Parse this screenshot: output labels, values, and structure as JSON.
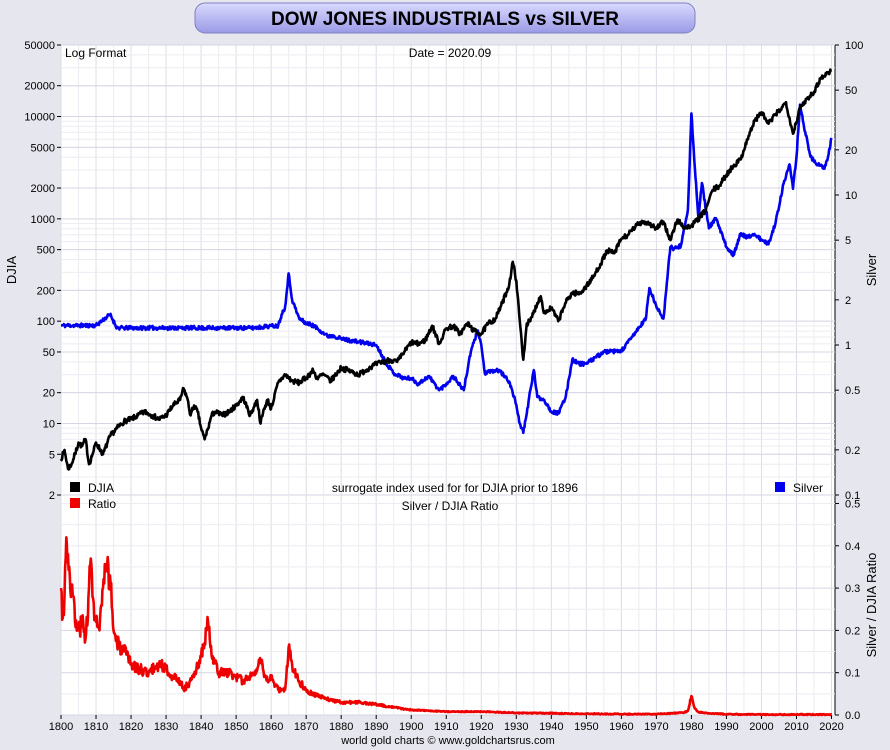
{
  "header": {
    "title": "DOW JONES INDUSTRIALS vs SILVER"
  },
  "footer": {
    "credit": "world gold charts © www.goldchartsrus.com"
  },
  "chart_data": [
    {
      "type": "line",
      "scale": "log",
      "format_note": "Log Format",
      "date_note": "Date = 2020.09",
      "surrogate_note": "surrogate index used for for DJIA prior to 1896",
      "ylabel_left": "DJIA",
      "ylabel_right": "Silver",
      "yticks_left": [
        2,
        5,
        10,
        20,
        50,
        100,
        200,
        500,
        1000,
        2000,
        5000,
        10000,
        20000,
        50000
      ],
      "yticks_right": [
        0.1,
        0.2,
        0.5,
        1,
        2,
        5,
        10,
        20,
        50,
        100
      ],
      "ylim_left": [
        2,
        50000
      ],
      "ylim_right": [
        0.1,
        100
      ],
      "xlim": [
        1800,
        2021
      ],
      "grid": true,
      "colors": {
        "djia": "#000000",
        "silver": "#0000ee"
      },
      "series": [
        {
          "name": "DJIA",
          "axis": "left",
          "x": [
            1800,
            1801,
            1802,
            1803,
            1804,
            1805,
            1806,
            1807,
            1808,
            1809,
            1810,
            1812,
            1814,
            1816,
            1818,
            1820,
            1822,
            1824,
            1826,
            1828,
            1830,
            1832,
            1834,
            1835,
            1836,
            1837,
            1838,
            1839,
            1840,
            1841,
            1842,
            1843,
            1844,
            1846,
            1848,
            1850,
            1852,
            1854,
            1856,
            1857,
            1858,
            1859,
            1860,
            1862,
            1864,
            1866,
            1868,
            1870,
            1872,
            1873,
            1875,
            1877,
            1880,
            1882,
            1885,
            1888,
            1890,
            1892,
            1894,
            1896,
            1898,
            1900,
            1902,
            1904,
            1906,
            1908,
            1910,
            1912,
            1914,
            1916,
            1918,
            1920,
            1922,
            1924,
            1926,
            1928,
            1929,
            1930,
            1931,
            1932,
            1933,
            1934,
            1936,
            1937,
            1938,
            1940,
            1942,
            1944,
            1946,
            1948,
            1950,
            1952,
            1954,
            1956,
            1958,
            1960,
            1962,
            1964,
            1966,
            1968,
            1970,
            1972,
            1974,
            1976,
            1978,
            1980,
            1982,
            1984,
            1986,
            1988,
            1990,
            1992,
            1994,
            1996,
            1998,
            2000,
            2002,
            2004,
            2006,
            2007,
            2009,
            2011,
            2013,
            2015,
            2017,
            2018,
            2019,
            2020
          ],
          "y": [
            4.5,
            5.5,
            3.6,
            4.0,
            5.0,
            6.5,
            6.0,
            7.0,
            4.0,
            5.0,
            6.5,
            5.0,
            7.5,
            9.0,
            10.5,
            11,
            12,
            13,
            12,
            11,
            12,
            15,
            17,
            22,
            18,
            12,
            15,
            13,
            9,
            7,
            9,
            12,
            13,
            12,
            13,
            15,
            18,
            12,
            17,
            10,
            14,
            17,
            14,
            25,
            30,
            26,
            25,
            28,
            33,
            28,
            30,
            26,
            35,
            33,
            30,
            35,
            38,
            40,
            42,
            40,
            50,
            62,
            60,
            65,
            90,
            60,
            85,
            90,
            75,
            95,
            80,
            75,
            95,
            105,
            150,
            230,
            380,
            250,
            100,
            42,
            95,
            100,
            150,
            175,
            120,
            135,
            100,
            150,
            190,
            185,
            220,
            270,
            360,
            490,
            460,
            640,
            700,
            840,
            950,
            900,
            800,
            940,
            620,
            980,
            820,
            850,
            1000,
            1200,
            1900,
            2100,
            2700,
            3300,
            3800,
            6000,
            9000,
            11000,
            8500,
            10400,
            12400,
            13800,
            6800,
            12000,
            15000,
            17500,
            24000,
            25000,
            27000,
            28500
          ]
        },
        {
          "name": "Silver",
          "axis": "right",
          "x": [
            1800,
            1805,
            1810,
            1814,
            1816,
            1820,
            1830,
            1840,
            1850,
            1855,
            1860,
            1862,
            1863,
            1864,
            1865,
            1866,
            1868,
            1870,
            1872,
            1874,
            1876,
            1878,
            1880,
            1885,
            1890,
            1893,
            1895,
            1898,
            1900,
            1902,
            1905,
            1908,
            1910,
            1912,
            1915,
            1917,
            1919,
            1920,
            1921,
            1925,
            1928,
            1930,
            1931,
            1932,
            1933,
            1934,
            1935,
            1936,
            1938,
            1940,
            1942,
            1944,
            1946,
            1948,
            1950,
            1955,
            1960,
            1965,
            1967,
            1968,
            1970,
            1972,
            1974,
            1975,
            1977,
            1979,
            1980,
            1981,
            1982,
            1983,
            1985,
            1987,
            1990,
            1992,
            1994,
            1996,
            1998,
            2000,
            2002,
            2004,
            2006,
            2008,
            2009,
            2010,
            2011,
            2012,
            2014,
            2016,
            2018,
            2019,
            2020
          ],
          "y": [
            1.35,
            1.35,
            1.35,
            1.6,
            1.3,
            1.3,
            1.3,
            1.3,
            1.3,
            1.3,
            1.34,
            1.34,
            1.6,
            1.8,
            3.0,
            2.0,
            1.5,
            1.4,
            1.35,
            1.25,
            1.15,
            1.15,
            1.1,
            1.05,
            1.0,
            0.75,
            0.65,
            0.6,
            0.6,
            0.55,
            0.62,
            0.5,
            0.55,
            0.62,
            0.5,
            0.9,
            1.25,
            1.0,
            0.65,
            0.68,
            0.57,
            0.4,
            0.3,
            0.26,
            0.35,
            0.5,
            0.68,
            0.45,
            0.43,
            0.36,
            0.35,
            0.44,
            0.8,
            0.75,
            0.75,
            0.9,
            0.91,
            1.3,
            1.5,
            2.4,
            1.8,
            1.5,
            4.5,
            4.4,
            4.6,
            8.0,
            35,
            15,
            7,
            12,
            6,
            7,
            4.5,
            4.0,
            5.5,
            5.2,
            5.5,
            5.0,
            4.7,
            6.5,
            11,
            16,
            11,
            18,
            40,
            30,
            18,
            16,
            15,
            18,
            24
          ]
        }
      ],
      "legend": [
        {
          "name": "DJIA",
          "color": "#000000",
          "placement": "bottom-left"
        },
        {
          "name": "Silver",
          "color": "#0000ee",
          "placement": "bottom-right"
        }
      ]
    },
    {
      "type": "line",
      "scale": "linear",
      "title": "Silver / DJIA Ratio",
      "ylabel_right": "Silver / DJIA Ratio",
      "yticks_right": [
        0.0,
        0.1,
        0.2,
        0.3,
        0.4,
        0.5
      ],
      "ylim": [
        0,
        0.52
      ],
      "xlim": [
        1800,
        2021
      ],
      "xticks": [
        1800,
        1810,
        1820,
        1830,
        1840,
        1850,
        1860,
        1870,
        1880,
        1890,
        1900,
        1910,
        1920,
        1930,
        1940,
        1950,
        1960,
        1970,
        1980,
        1990,
        2000,
        2010,
        2020
      ],
      "grid": true,
      "colors": {
        "ratio": "#ee0000"
      },
      "series": [
        {
          "name": "Ratio",
          "x": [
            1800,
            1800.5,
            1801,
            1801.5,
            1802,
            1802.5,
            1803,
            1803.5,
            1804,
            1805,
            1806,
            1807,
            1808,
            1808.5,
            1809,
            1810,
            1811,
            1812,
            1813,
            1814,
            1815,
            1816,
            1818,
            1820,
            1822,
            1825,
            1828,
            1830,
            1832,
            1834,
            1835,
            1836,
            1838,
            1840,
            1841,
            1842,
            1843,
            1845,
            1848,
            1850,
            1852,
            1855,
            1857,
            1858,
            1859,
            1860,
            1862,
            1864,
            1865,
            1866,
            1868,
            1870,
            1872,
            1875,
            1880,
            1885,
            1890,
            1895,
            1900,
            1910,
            1920,
            1930,
            1940,
            1950,
            1960,
            1970,
            1975,
            1978,
            1979,
            1980,
            1981,
            1982,
            1985,
            1990,
            2000,
            2010,
            2011,
            2012,
            2015,
            2020
          ],
          "y": [
            0.3,
            0.23,
            0.28,
            0.42,
            0.38,
            0.33,
            0.3,
            0.28,
            0.22,
            0.2,
            0.22,
            0.18,
            0.3,
            0.37,
            0.28,
            0.22,
            0.2,
            0.3,
            0.34,
            0.33,
            0.2,
            0.17,
            0.15,
            0.12,
            0.11,
            0.1,
            0.12,
            0.11,
            0.09,
            0.08,
            0.06,
            0.07,
            0.09,
            0.14,
            0.17,
            0.22,
            0.14,
            0.1,
            0.1,
            0.09,
            0.08,
            0.1,
            0.13,
            0.09,
            0.08,
            0.09,
            0.06,
            0.06,
            0.16,
            0.12,
            0.08,
            0.06,
            0.05,
            0.04,
            0.03,
            0.03,
            0.025,
            0.018,
            0.012,
            0.008,
            0.008,
            0.005,
            0.004,
            0.003,
            0.002,
            0.002,
            0.004,
            0.006,
            0.01,
            0.045,
            0.015,
            0.007,
            0.004,
            0.002,
            0.001,
            0.001,
            0.002,
            0.001,
            0.001,
            0.001
          ]
        }
      ],
      "legend": [
        {
          "name": "Ratio",
          "color": "#ee0000",
          "placement": "top-left"
        }
      ]
    }
  ]
}
